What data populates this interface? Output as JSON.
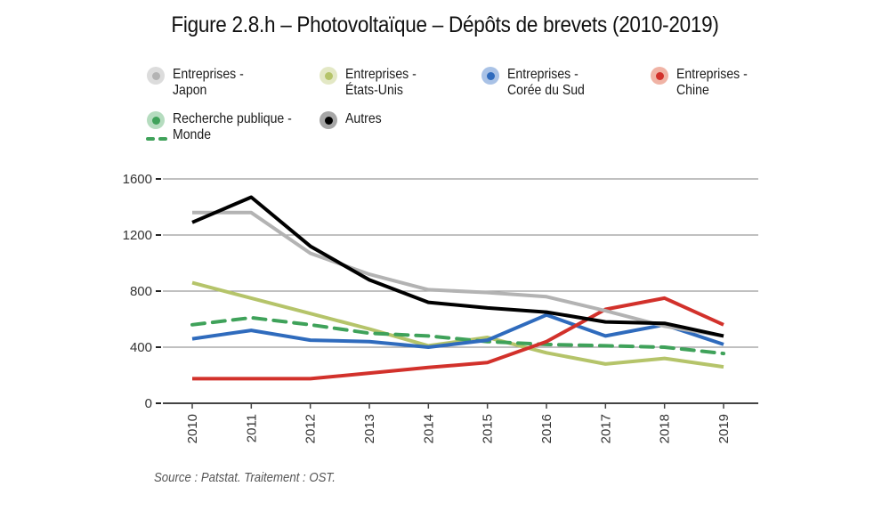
{
  "chart_data": {
    "type": "line",
    "title": "Figure 2.8.h – Photovoltaïque – Dépôts de brevets (2010-2019)",
    "xlabel": "",
    "ylabel": "",
    "x": [
      "2010",
      "2011",
      "2012",
      "2013",
      "2014",
      "2015",
      "2016",
      "2017",
      "2018",
      "2019"
    ],
    "ylim": [
      0,
      1600
    ],
    "yticks": [
      "0",
      "400",
      "800",
      "1200",
      "1600"
    ],
    "ytick_values": [
      0,
      400,
      800,
      1200,
      1600
    ],
    "grid": true,
    "legend_position": "top",
    "series": [
      {
        "name": "Entreprises - Japon",
        "legend_label": "Entreprises -\nJapon",
        "color": "#b3b3b3",
        "halo": "#dcdcdc",
        "style": "solid",
        "values": [
          1360,
          1360,
          1070,
          920,
          810,
          790,
          760,
          660,
          550,
          480
        ]
      },
      {
        "name": "Entreprises - États-Unis",
        "legend_label": "Entreprises -\nÉtats-Unis",
        "color": "#b5c46a",
        "halo": "#e3e8c5",
        "style": "solid",
        "values": [
          860,
          750,
          640,
          530,
          410,
          470,
          360,
          280,
          320,
          260
        ]
      },
      {
        "name": "Entreprises - Corée du Sud",
        "legend_label": "Entreprises -\nCorée du Sud",
        "color": "#2f6bbd",
        "halo": "#a9c2e6",
        "style": "solid",
        "values": [
          460,
          520,
          450,
          440,
          400,
          450,
          630,
          480,
          560,
          420
        ]
      },
      {
        "name": "Entreprises - Chine",
        "legend_label": "Entreprises -\nChine",
        "color": "#d2312b",
        "halo": "#f0b3a5",
        "style": "solid",
        "values": [
          175,
          175,
          175,
          215,
          255,
          290,
          440,
          670,
          750,
          560
        ]
      },
      {
        "name": "Recherche publique - Monde",
        "legend_label": "Recherche publique -\nMonde",
        "color": "#3fa25a",
        "halo": "#b5dcbf",
        "style": "dashed",
        "values": [
          560,
          610,
          560,
          500,
          480,
          440,
          420,
          410,
          400,
          355
        ]
      },
      {
        "name": "Autres",
        "legend_label": "Autres",
        "color": "#000000",
        "halo": "#a6a6a6",
        "style": "solid",
        "values": [
          1290,
          1470,
          1120,
          880,
          720,
          680,
          650,
          580,
          570,
          480
        ]
      }
    ],
    "source": "Source : Patstat. Traitement : OST."
  }
}
